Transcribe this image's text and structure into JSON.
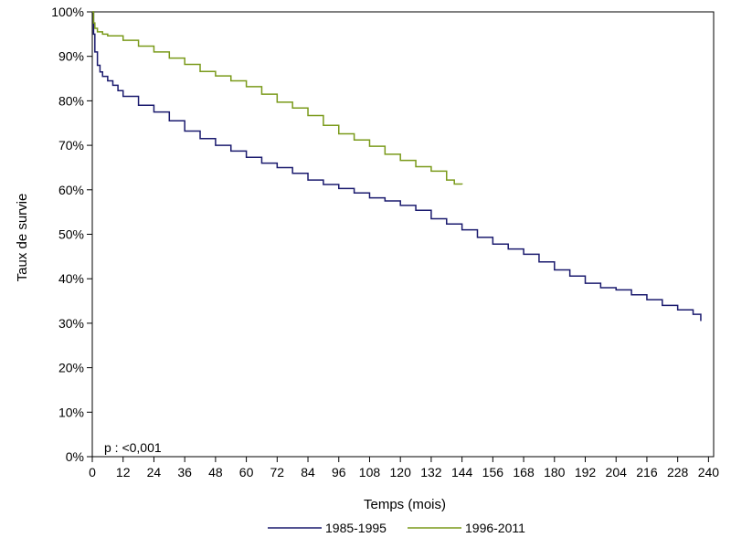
{
  "chart_data": {
    "type": "line",
    "title": "",
    "xlabel": "Temps (mois)",
    "ylabel": "Taux de survie",
    "xlim": [
      0,
      242
    ],
    "ylim": [
      0,
      100
    ],
    "x_ticks": [
      0,
      12,
      24,
      36,
      48,
      60,
      72,
      84,
      96,
      108,
      120,
      132,
      144,
      156,
      168,
      180,
      192,
      204,
      216,
      228,
      240
    ],
    "y_ticks": [
      0,
      10,
      20,
      30,
      40,
      50,
      60,
      70,
      80,
      90,
      100
    ],
    "y_tick_labels": [
      "0%",
      "10%",
      "20%",
      "30%",
      "40%",
      "50%",
      "60%",
      "70%",
      "80%",
      "90%",
      "100%"
    ],
    "grid": false,
    "legend_position": "bottom",
    "annotation": "p : <0,001",
    "colors": {
      "1985-1995": "#1a1a6e",
      "1996-2011": "#7a9a1a"
    },
    "series": [
      {
        "name": "1985-1995",
        "x": [
          0,
          0.5,
          1,
          2,
          3,
          4,
          6,
          8,
          10,
          12,
          18,
          24,
          30,
          36,
          42,
          48,
          54,
          60,
          66,
          72,
          78,
          84,
          90,
          96,
          102,
          108,
          114,
          120,
          126,
          132,
          138,
          144,
          150,
          156,
          162,
          168,
          174,
          180,
          186,
          192,
          198,
          204,
          210,
          216,
          222,
          228,
          234,
          237
        ],
        "y": [
          100,
          95,
          91,
          88,
          86.5,
          85.5,
          84.5,
          83.5,
          82.3,
          81,
          79,
          77.5,
          75.5,
          73.2,
          71.5,
          70,
          68.7,
          67.3,
          66,
          65,
          63.7,
          62.2,
          61.2,
          60.3,
          59.3,
          58.2,
          57.5,
          56.5,
          55.4,
          53.5,
          52.3,
          51,
          49.3,
          47.8,
          46.7,
          45.5,
          43.8,
          42,
          40.6,
          39,
          38,
          37.5,
          36.4,
          35.3,
          34,
          33,
          32,
          30.5
        ]
      },
      {
        "name": "1996-2011",
        "x": [
          0,
          0.5,
          1,
          2,
          4,
          6,
          12,
          18,
          24,
          30,
          36,
          42,
          48,
          54,
          60,
          66,
          72,
          78,
          84,
          90,
          96,
          102,
          108,
          114,
          120,
          126,
          132,
          138,
          141,
          144
        ],
        "y": [
          100,
          97.5,
          96.3,
          95.5,
          95,
          94.6,
          93.6,
          92.3,
          91,
          89.6,
          88.2,
          86.6,
          85.6,
          84.5,
          83.2,
          81.5,
          79.7,
          78.4,
          76.7,
          74.5,
          72.6,
          71.2,
          69.8,
          68,
          66.6,
          65.2,
          64.2,
          62.2,
          61.3,
          61.2
        ]
      }
    ]
  }
}
